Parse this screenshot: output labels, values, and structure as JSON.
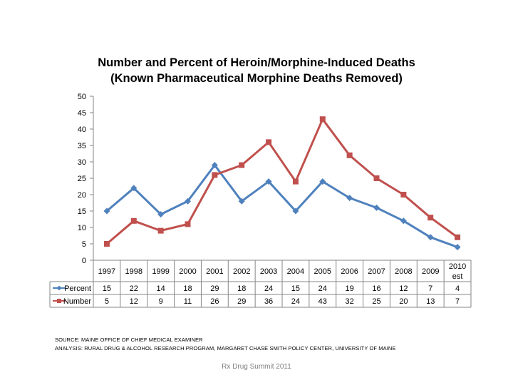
{
  "chart_data": {
    "type": "line",
    "title": "Number and Percent of Heroin/Morphine-Induced Deaths",
    "subtitle": "(Known Pharmaceutical Morphine Deaths Removed)",
    "categories": [
      "1997",
      "1998",
      "1999",
      "2000",
      "2001",
      "2002",
      "2003",
      "2004",
      "2005",
      "2006",
      "2007",
      "2008",
      "2009",
      "2010 est"
    ],
    "ylim": [
      0,
      50
    ],
    "yticks": [
      0,
      5,
      10,
      15,
      20,
      25,
      30,
      35,
      40,
      45,
      50
    ],
    "series": [
      {
        "name": "Percent",
        "color": "#4f81bd",
        "marker": "diamond",
        "values": [
          15,
          22,
          14,
          18,
          29,
          18,
          24,
          15,
          24,
          19,
          16,
          12,
          7,
          4
        ]
      },
      {
        "name": "Number",
        "color": "#c0504d",
        "marker": "square",
        "values": [
          5,
          12,
          9,
          11,
          26,
          29,
          36,
          24,
          43,
          32,
          25,
          20,
          13,
          7
        ]
      }
    ],
    "legend": "data-table",
    "grid": false
  },
  "source_lines": [
    "SOURCE: MAINE OFFICE OF CHIEF MEDICAL EXAMINER",
    "ANALYSIS: RURAL DRUG & ALCOHOL RESEARCH PROGRAM, MARGARET CHASE SMITH POLICY CENTER, UNIVERSITY OF MAINE"
  ],
  "footer": "Rx Drug Summit 2011"
}
